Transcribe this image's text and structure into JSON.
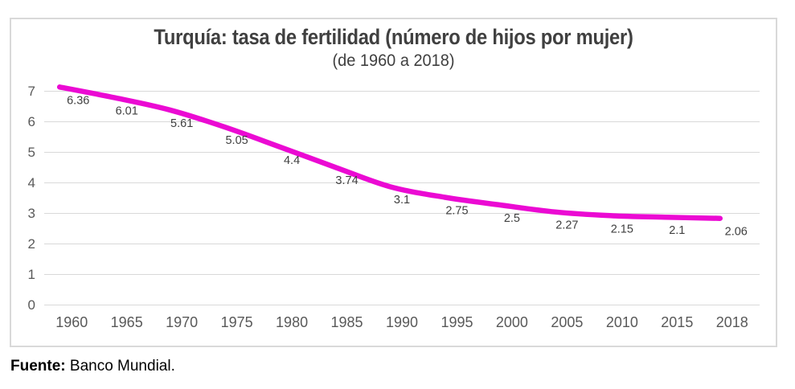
{
  "chart_data": {
    "type": "line",
    "title": "Turquía: tasa de fertilidad (número de hijos por mujer)",
    "subtitle": "(de 1960 a 2018)",
    "series_name": "tasa de fertilidad (hijos por mujer)",
    "categories": [
      "1960",
      "1965",
      "1970",
      "1975",
      "1980",
      "1985",
      "1990",
      "1995",
      "2000",
      "2005",
      "2010",
      "2015",
      "2018"
    ],
    "values": [
      6.36,
      6.01,
      5.61,
      5.05,
      4.4,
      3.74,
      3.1,
      2.75,
      2.5,
      2.27,
      2.15,
      2.1,
      2.06
    ],
    "data_labels": [
      "6.36",
      "6.01",
      "5.61",
      "5.05",
      "4.4",
      "3.74",
      "3.1",
      "2.75",
      "2.5",
      "2.27",
      "2.15",
      "2.1",
      "2.06"
    ],
    "xlabel": "",
    "ylabel": "",
    "ylim": [
      0,
      7
    ],
    "yticks": [
      0,
      1,
      2,
      3,
      4,
      5,
      6,
      7
    ],
    "grid": true,
    "legend": "none",
    "smooth": true,
    "colors": {
      "line": "#EB0AD3",
      "grid": "#D9D9D9",
      "axis_text": "#595959",
      "title_text": "#404040",
      "data_label_text": "#404040",
      "frame_border": "#D9D9D9",
      "source_text": "#000000"
    }
  },
  "source_note": {
    "label": "Fuente:",
    "text": "Banco Mundial."
  }
}
